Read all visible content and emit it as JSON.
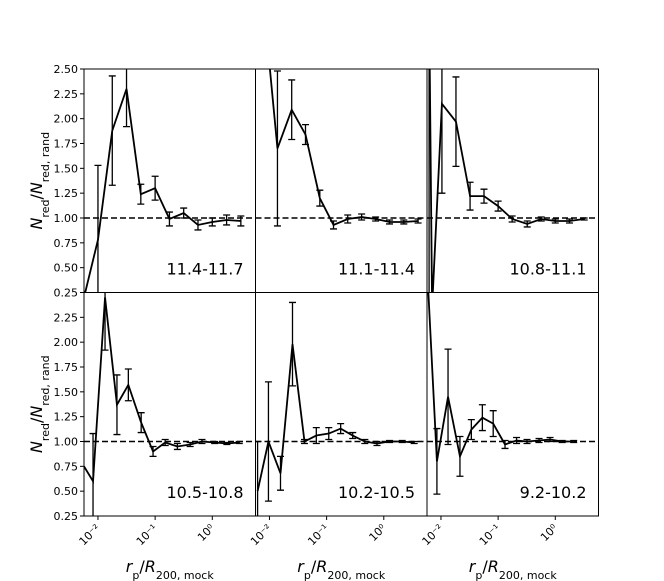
{
  "chart_data": [
    {
      "type": "line",
      "annotation": "11.4-11.7",
      "color": "#000000",
      "hline": 1,
      "ylabel": [
        "N",
        "red",
        "/",
        "N",
        "red, rand"
      ],
      "x": [
        0.0057,
        0.01,
        0.0178,
        0.0316,
        0.0562,
        0.1,
        0.178,
        0.316,
        0.562,
        1.0,
        1.78,
        3.16
      ],
      "values": [
        0.2,
        0.78,
        1.88,
        2.3,
        1.24,
        1.3,
        0.99,
        1.05,
        0.93,
        0.96,
        0.98,
        0.97
      ],
      "errors": [
        0,
        0.75,
        0.55,
        0.38,
        0.1,
        0.12,
        0.07,
        0.05,
        0.05,
        0.04,
        0.05,
        0.05
      ],
      "xlim": [
        0.0057,
        5.7
      ],
      "ylim": [
        0.25,
        2.5
      ],
      "yticks": [
        0.25,
        {
          "value": 0.5,
          "label": "0.50"
        },
        0.75,
        {
          "value": 1.0,
          "label": "1.00"
        },
        1.25,
        {
          "value": 1.5,
          "label": "1.50"
        },
        1.75,
        {
          "value": 2.0,
          "label": "2.00"
        },
        2.25,
        {
          "value": 2.5,
          "label": "2.50"
        }
      ]
    },
    {
      "type": "line",
      "annotation": "11.1-11.4",
      "color": "#000000",
      "hline": 1,
      "x": [
        0.0078,
        0.0138,
        0.0245,
        0.0427,
        0.076,
        0.132,
        0.234,
        0.41,
        0.72,
        1.26,
        2.24,
        3.98
      ],
      "values": [
        3.2,
        1.7,
        2.09,
        1.84,
        1.2,
        0.93,
        0.99,
        1.01,
        0.99,
        0.96,
        0.96,
        0.97
      ],
      "errors": [
        0,
        0.78,
        0.3,
        0.1,
        0.08,
        0.04,
        0.04,
        0.03,
        0.02,
        0.02,
        0.02,
        0.02
      ],
      "xlim": [
        0.0057,
        5.7
      ],
      "ylim": [
        0.25,
        2.5
      ]
    },
    {
      "type": "line",
      "annotation": "10.8-11.1",
      "color": "#000000",
      "hline": 1,
      "x": [
        0.0062,
        0.007,
        0.0104,
        0.0183,
        0.0323,
        0.0566,
        0.1,
        0.176,
        0.323,
        0.567,
        1.0,
        1.77,
        3.2
      ],
      "values": [
        3.2,
        0.1,
        2.15,
        1.97,
        1.22,
        1.22,
        1.12,
        0.99,
        0.94,
        0.99,
        0.97,
        0.97,
        0.99
      ],
      "errors": [
        3,
        0,
        0.9,
        0.45,
        0.14,
        0.07,
        0.05,
        0.03,
        0.03,
        0.02,
        0.02,
        0.02,
        0.01
      ],
      "xlim": [
        0.0057,
        5.7
      ],
      "ylim": [
        0.25,
        2.5
      ]
    },
    {
      "type": "line",
      "annotation": "10.5-10.8",
      "color": "#000000",
      "hline": 1,
      "ylabel": [
        "N",
        "red",
        "/",
        "N",
        "red, rand"
      ],
      "xlabel": [
        "r",
        "p",
        "/",
        "R",
        "200, mock"
      ],
      "x": [
        0.0057,
        0.0082,
        0.0133,
        0.0215,
        0.034,
        0.057,
        0.092,
        0.15,
        0.245,
        0.41,
        0.66,
        1.1,
        1.8,
        2.96
      ],
      "values": [
        0.75,
        0.6,
        2.45,
        1.37,
        1.57,
        1.19,
        0.9,
        0.99,
        0.95,
        0.97,
        1.0,
        0.99,
        0.98,
        0.99
      ],
      "errors": [
        0,
        0.48,
        0.53,
        0.3,
        0.16,
        0.1,
        0.05,
        0.03,
        0.03,
        0.02,
        0.02,
        0.01,
        0.01,
        0.01
      ],
      "xlim": [
        0.0057,
        5.7
      ],
      "ylim": [
        0.25,
        2.5
      ],
      "yticks": [
        0.25,
        {
          "value": 0.5,
          "label": "0.50"
        },
        0.75,
        {
          "value": 1.0,
          "label": "1.00"
        },
        1.25,
        {
          "value": 1.5,
          "label": "1.50"
        },
        1.75,
        {
          "value": 2.0,
          "label": "2.00"
        },
        2.25
      ],
      "xticks": [
        {
          "value": 0.01,
          "label": "10⁻²"
        },
        {
          "value": 0.1,
          "label": "10⁻¹"
        },
        {
          "value": 1,
          "label": "10⁰"
        }
      ]
    },
    {
      "type": "line",
      "annotation": "10.2-10.5",
      "color": "#000000",
      "hline": 1,
      "xlabel": [
        "r",
        "p",
        "/",
        "R",
        "200, mock"
      ],
      "x": [
        0.0062,
        0.0096,
        0.0156,
        0.0253,
        0.041,
        0.066,
        0.109,
        0.176,
        0.286,
        0.466,
        0.76,
        1.26,
        2.1,
        3.4
      ],
      "values": [
        0.5,
        1.0,
        0.68,
        1.98,
        1.0,
        1.06,
        1.08,
        1.13,
        1.06,
        1.0,
        0.98,
        1.0,
        1.0,
        0.99
      ],
      "errors": [
        0.5,
        0.6,
        0.17,
        0.42,
        0.02,
        0.08,
        0.06,
        0.05,
        0.03,
        0.02,
        0.02,
        0.01,
        0.01,
        0.01
      ],
      "xlim": [
        0.0057,
        5.7
      ],
      "ylim": [
        0.25,
        2.5
      ],
      "xticks": [
        {
          "value": 0.01,
          "label": "10⁻²"
        },
        {
          "value": 0.1,
          "label": "10⁻¹"
        },
        {
          "value": 1,
          "label": "10⁰"
        }
      ]
    },
    {
      "type": "line",
      "annotation": "9.2-10.2",
      "color": "#000000",
      "hline": 1,
      "xlabel": [
        "r",
        "p",
        "/",
        "R",
        "200, mock"
      ],
      "x": [
        0.0059,
        0.0085,
        0.0133,
        0.0215,
        0.034,
        0.053,
        0.082,
        0.132,
        0.21,
        0.32,
        0.52,
        0.81,
        1.32,
        2.1
      ],
      "values": [
        2.6,
        0.8,
        1.45,
        0.85,
        1.12,
        1.24,
        1.18,
        0.97,
        1.01,
        1.0,
        1.01,
        1.02,
        1.0,
        1.0
      ],
      "errors": [
        0,
        0.33,
        0.48,
        0.2,
        0.1,
        0.13,
        0.13,
        0.04,
        0.03,
        0.02,
        0.02,
        0.02,
        0.01,
        0.01
      ],
      "xlim": [
        0.0057,
        5.7
      ],
      "ylim": [
        0.25,
        2.5
      ],
      "xticks": [
        {
          "value": 0.01,
          "label": "10⁻²"
        },
        {
          "value": 0.1,
          "label": "10⁻¹"
        },
        {
          "value": 1,
          "label": "10⁰"
        }
      ]
    }
  ]
}
